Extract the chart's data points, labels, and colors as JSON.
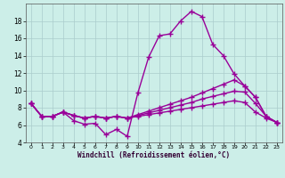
{
  "background_color": "#cceee8",
  "line_color": "#990099",
  "marker": "+",
  "markersize": 4,
  "linewidth": 1.0,
  "xlabel": "Windchill (Refroidissement éolien,°C)",
  "xlim": [
    -0.5,
    23.5
  ],
  "ylim": [
    4,
    20
  ],
  "yticks": [
    4,
    6,
    8,
    10,
    12,
    14,
    16,
    18
  ],
  "xticks": [
    0,
    1,
    2,
    3,
    4,
    5,
    6,
    7,
    8,
    9,
    10,
    11,
    12,
    13,
    14,
    15,
    16,
    17,
    18,
    19,
    20,
    21,
    22,
    23
  ],
  "grid_color": "#aacccc",
  "lines": [
    {
      "x": [
        0,
        1,
        2,
        3,
        4,
        5,
        6,
        7,
        8,
        9,
        10,
        11,
        12,
        13,
        14,
        15,
        16,
        17,
        18,
        19,
        20,
        21,
        22,
        23
      ],
      "y": [
        8.5,
        7.0,
        7.0,
        7.5,
        6.5,
        6.1,
        6.2,
        4.9,
        5.5,
        4.7,
        9.7,
        13.8,
        16.3,
        16.5,
        18.0,
        19.1,
        18.5,
        15.3,
        14.0,
        11.9,
        10.5,
        9.2,
        7.0,
        6.3
      ]
    },
    {
      "x": [
        0,
        1,
        2,
        3,
        4,
        5,
        6,
        7,
        8,
        9,
        10,
        11,
        12,
        13,
        14,
        15,
        16,
        17,
        18,
        19,
        20,
        21,
        22,
        23
      ],
      "y": [
        8.5,
        7.0,
        7.0,
        7.5,
        7.1,
        6.8,
        7.0,
        6.8,
        7.0,
        6.8,
        7.2,
        7.6,
        8.0,
        8.4,
        8.8,
        9.2,
        9.7,
        10.2,
        10.7,
        11.2,
        10.5,
        9.2,
        7.0,
        6.3
      ]
    },
    {
      "x": [
        0,
        1,
        2,
        3,
        4,
        5,
        6,
        7,
        8,
        9,
        10,
        11,
        12,
        13,
        14,
        15,
        16,
        17,
        18,
        19,
        20,
        21,
        22,
        23
      ],
      "y": [
        8.5,
        7.0,
        7.0,
        7.5,
        7.1,
        6.8,
        7.0,
        6.8,
        7.0,
        6.8,
        7.1,
        7.4,
        7.7,
        8.0,
        8.3,
        8.6,
        9.0,
        9.3,
        9.6,
        9.9,
        9.8,
        8.5,
        7.0,
        6.3
      ]
    },
    {
      "x": [
        0,
        1,
        2,
        3,
        4,
        5,
        6,
        7,
        8,
        9,
        10,
        11,
        12,
        13,
        14,
        15,
        16,
        17,
        18,
        19,
        20,
        21,
        22,
        23
      ],
      "y": [
        8.5,
        7.0,
        7.0,
        7.5,
        7.1,
        6.8,
        7.0,
        6.8,
        7.0,
        6.8,
        7.0,
        7.2,
        7.4,
        7.6,
        7.8,
        8.0,
        8.2,
        8.4,
        8.6,
        8.8,
        8.6,
        7.5,
        6.8,
        6.3
      ]
    }
  ]
}
